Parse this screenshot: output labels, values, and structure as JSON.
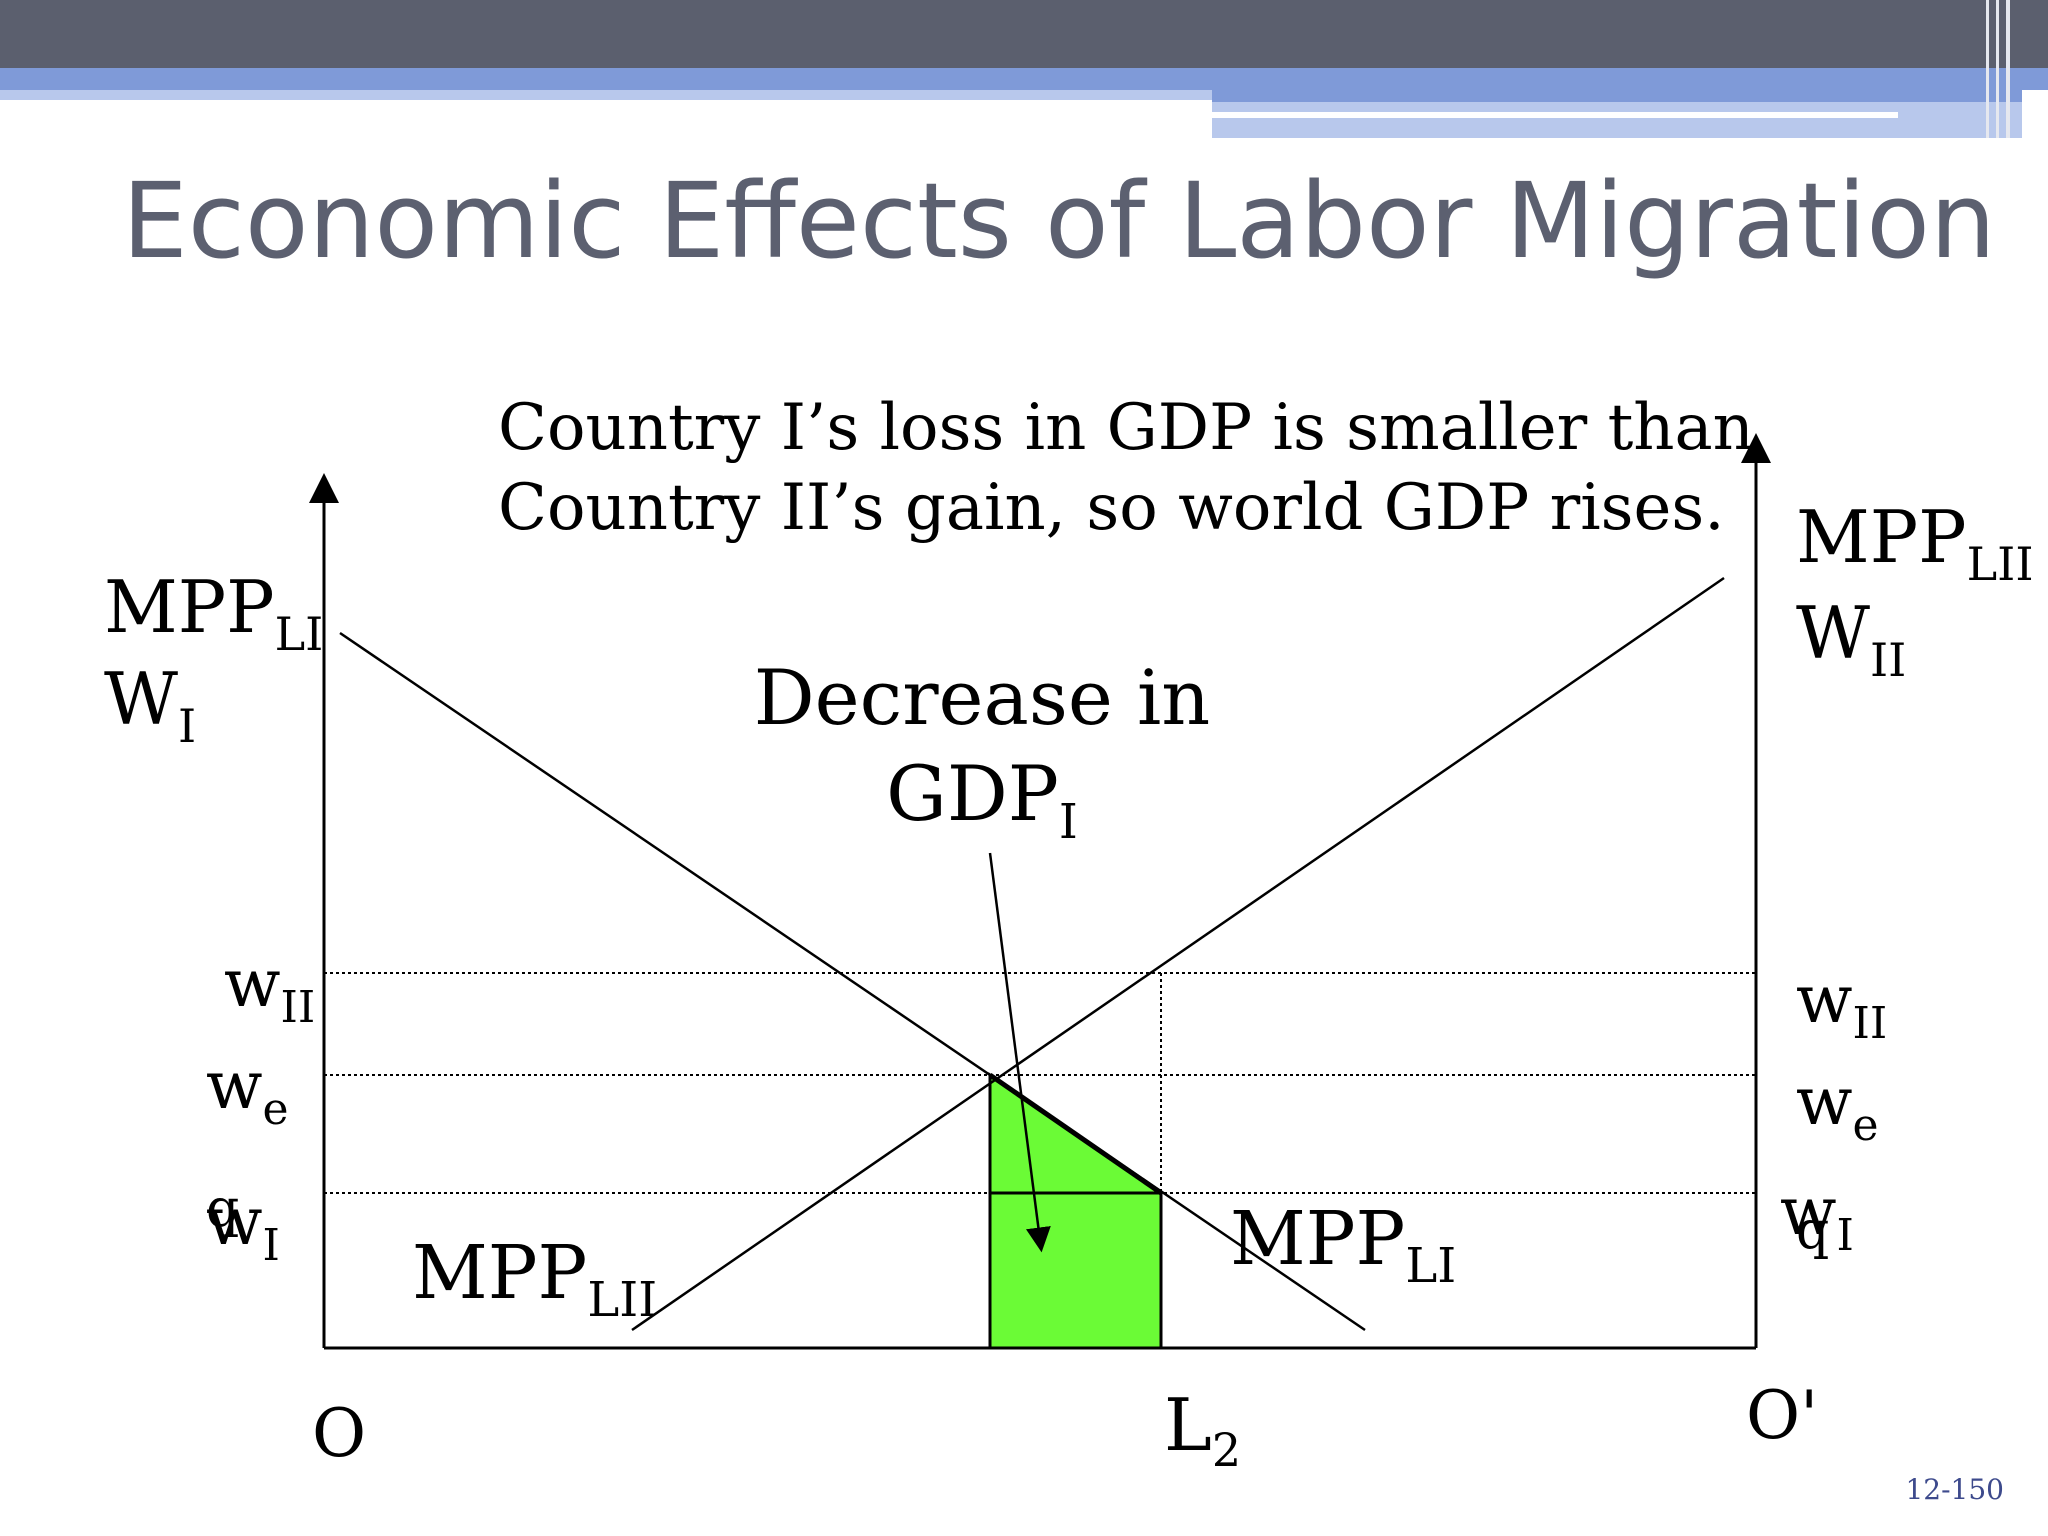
{
  "slide": {
    "title": "Economic Effects of Labor Migration",
    "caption_lines": [
      "Country I’s loss in GDP is smaller than",
      "Country II’s gain, so world GDP rises."
    ],
    "slide_number": "12-150",
    "colors": {
      "top_bar": "#5b5f6e",
      "accent_blue": "#7f9ad8",
      "accent_light": "#b8c8ec",
      "title": "#5c6070",
      "area_fill": "#6bfb36",
      "slide_number": "#3d4a8c"
    }
  },
  "diagram": {
    "left_axis_label": {
      "base": "MPP",
      "sub": "LI",
      "base2": "W",
      "sub2": "I"
    },
    "right_axis_label": {
      "base": "MPP",
      "sub": "LII",
      "base2": "W",
      "sub2": "II"
    },
    "left_ticks": [
      {
        "base": "w",
        "sub": "II"
      },
      {
        "base": "w",
        "sub": "e"
      },
      {
        "base": "w",
        "sub": "I",
        "overstrike": "q"
      }
    ],
    "right_ticks": [
      {
        "base": "w",
        "sub": "II"
      },
      {
        "base": "w",
        "sub": "e"
      },
      {
        "base": "w",
        "sub": "I",
        "overstrike": "q"
      }
    ],
    "curve_labels": {
      "mpp_lii": {
        "base": "MPP",
        "sub": "LII"
      },
      "mpp_li": {
        "base": "MPP",
        "sub": "LI"
      }
    },
    "annotation": {
      "line1": "Decrease in",
      "line2_base": "GDP",
      "line2_sub": "I"
    },
    "origin_left": "O",
    "origin_right": "O'",
    "x_marker": {
      "base": "L",
      "sub": "2"
    }
  }
}
